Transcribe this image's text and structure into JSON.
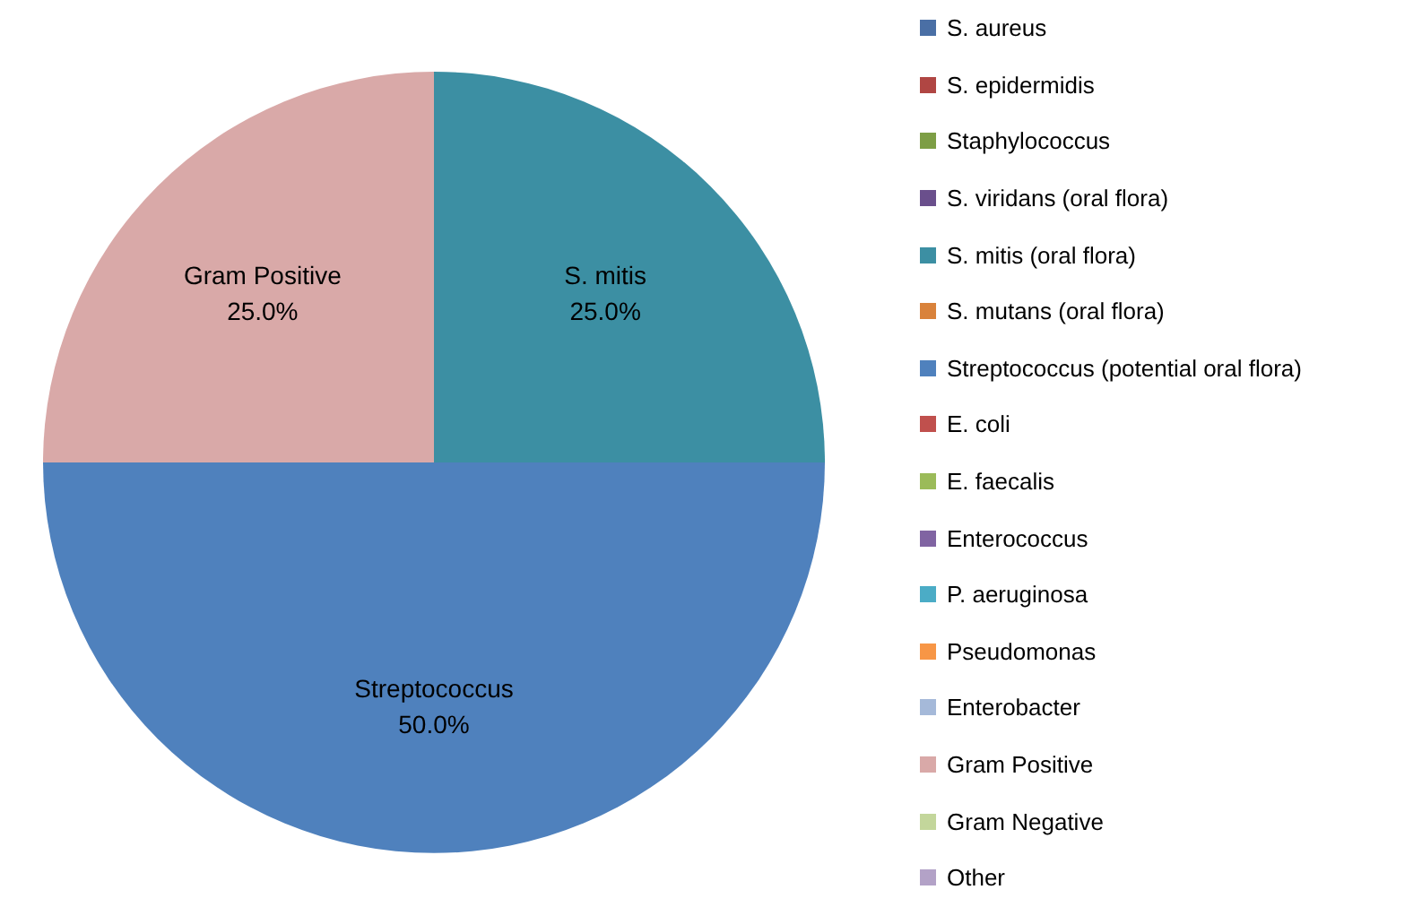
{
  "chart_data": {
    "type": "pie",
    "categories": [
      "S. aureus",
      "S. epidermidis",
      "Staphylococcus",
      "S. viridans (oral flora)",
      "S. mitis (oral flora)",
      "S. mutans (oral flora)",
      "Streptococcus (potential oral flora)",
      "E. coli",
      "E. faecalis",
      "Enterococcus",
      "P. aeruginosa",
      "Pseudomonas",
      "Enterobacter",
      "Gram Positive",
      "Gram Negative",
      "Other"
    ],
    "values": [
      0,
      0,
      0,
      0,
      25,
      0,
      50,
      0,
      0,
      0,
      0,
      0,
      0,
      25,
      0,
      0
    ],
    "value_labels": [
      null,
      null,
      null,
      null,
      "S. mitis\n25.0%",
      null,
      "Streptococcus\n50.0%",
      null,
      null,
      null,
      null,
      null,
      null,
      "Gram Positive\n25.0%",
      null,
      null
    ],
    "colors": [
      "#4a6fa5",
      "#b04643",
      "#7d9e45",
      "#6a4f8c",
      "#3c8fa3",
      "#d9823b",
      "#4f81bd",
      "#c0504d",
      "#9bbb59",
      "#8064a2",
      "#4bacc6",
      "#f79646",
      "#a5b9d9",
      "#d9a9a8",
      "#c3d69b",
      "#b3a2c7"
    ],
    "legend": "right"
  }
}
